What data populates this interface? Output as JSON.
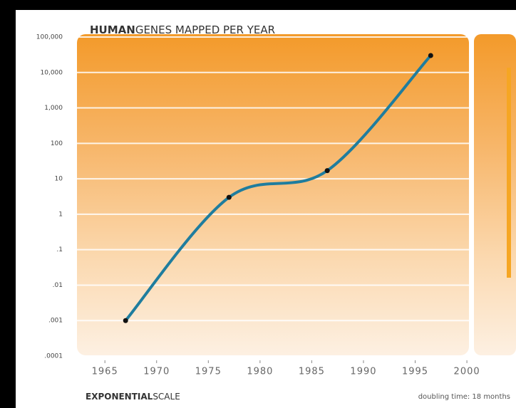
{
  "chart_data": {
    "type": "line",
    "title_bold": "HUMAN",
    "title": "GENES MAPPED PER YEAR",
    "footer_bold": "EXPONENTIAL",
    "footer": "SCALE",
    "note": "doubling time: 18 months",
    "x": [
      1967,
      1977,
      1986.5,
      1996.5
    ],
    "series": [
      {
        "color": "#1f7d9e",
        "values": [
          0.001,
          3,
          17,
          30000
        ]
      }
    ],
    "log_y": true,
    "xlim": [
      1962.3,
      2000.2
    ],
    "xticks": [
      1965,
      1970,
      1975,
      1980,
      1985,
      1990,
      1995,
      2000
    ],
    "ylim": [
      0.0001,
      100000
    ],
    "yticks": [
      {
        "value": 0.0001,
        "label": ".0001"
      },
      {
        "value": 0.001,
        "label": ".001"
      },
      {
        "value": 0.01,
        "label": ".01"
      },
      {
        "value": 0.1,
        "label": ".1"
      },
      1,
      10,
      100,
      {
        "value": 1000,
        "label": "1,000"
      },
      {
        "value": 10000,
        "label": "10,000"
      },
      {
        "value": 100000,
        "label": "100,000"
      }
    ],
    "grid": true
  }
}
